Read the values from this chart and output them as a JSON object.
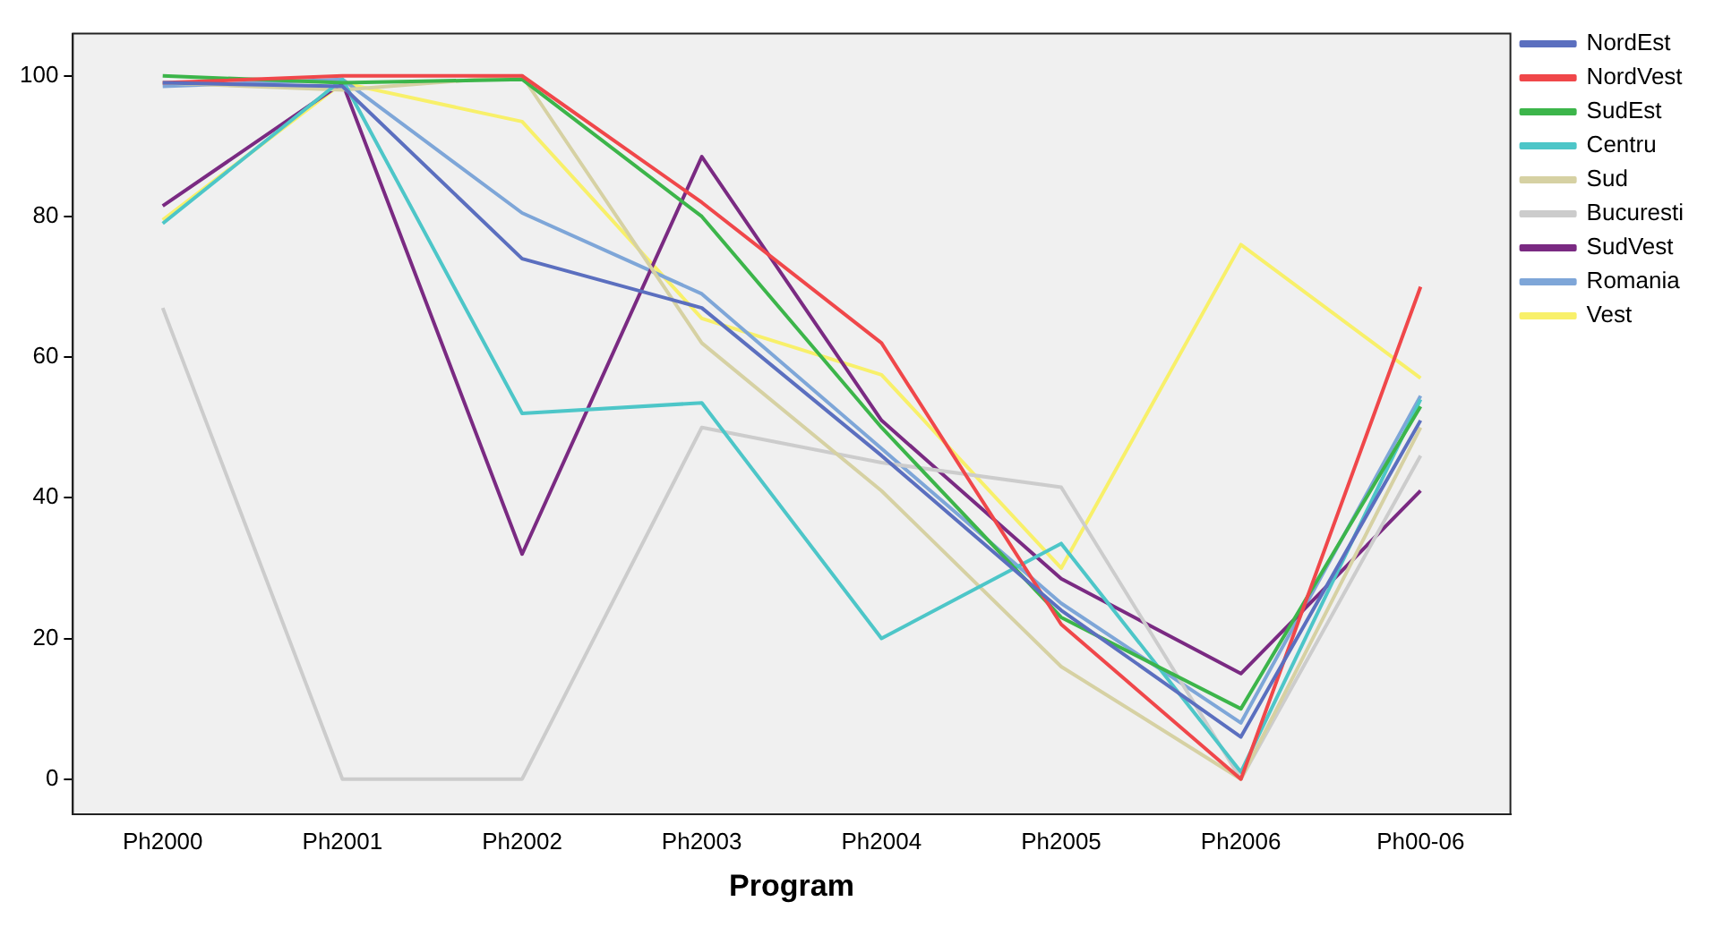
{
  "chart_data": {
    "type": "line",
    "xlabel": "Program",
    "categories": [
      "Ph2000",
      "Ph2001",
      "Ph2002",
      "Ph2003",
      "Ph2004",
      "Ph2005",
      "Ph2006",
      "Ph00-06"
    ],
    "ylim": [
      -5,
      106
    ],
    "yticks": [
      0,
      20,
      40,
      60,
      80,
      100
    ],
    "grid": false,
    "legend": "right",
    "marker": "none",
    "line_style": "solid",
    "series": [
      {
        "name": "NordEst",
        "color": "#5b6fbf",
        "values": [
          99,
          98.5,
          74,
          67,
          46,
          24,
          6,
          51
        ]
      },
      {
        "name": "NordVest",
        "color": "#f0474a",
        "values": [
          99,
          100,
          100,
          82,
          62,
          22,
          0,
          70
        ]
      },
      {
        "name": "SudEst",
        "color": "#3cb54a",
        "values": [
          100,
          99,
          99.5,
          80,
          50,
          23,
          10,
          53
        ]
      },
      {
        "name": "Centru",
        "color": "#4dc6c8",
        "values": [
          79,
          99.5,
          52,
          53.5,
          20,
          33.5,
          1,
          54
        ]
      },
      {
        "name": "Sud",
        "color": "#d6d1a3",
        "values": [
          99,
          98,
          100,
          62,
          41,
          16,
          0,
          50
        ]
      },
      {
        "name": "Bucuresti",
        "color": "#cccccc",
        "values": [
          67,
          0,
          0,
          50,
          45,
          41.5,
          0,
          46
        ]
      },
      {
        "name": "SudVest",
        "color": "#7a2a82",
        "values": [
          81.5,
          99,
          32,
          88.5,
          51,
          28.5,
          15,
          41
        ]
      },
      {
        "name": "Romania",
        "color": "#7ea6d8",
        "values": [
          98.5,
          99.5,
          80.5,
          69,
          47,
          25,
          8,
          54.5
        ]
      },
      {
        "name": "Vest",
        "color": "#f8f06a",
        "values": [
          79.5,
          99,
          93.5,
          65.5,
          57.5,
          30,
          76,
          57
        ]
      }
    ]
  }
}
